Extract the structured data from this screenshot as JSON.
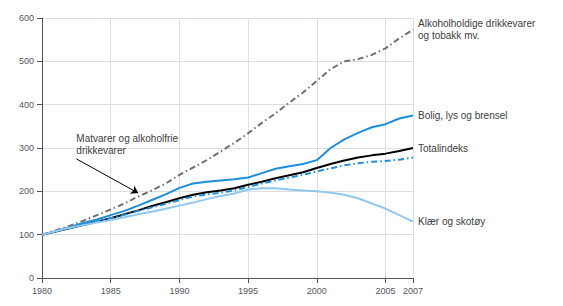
{
  "chart_data": {
    "type": "line",
    "x": [
      1980,
      1981,
      1982,
      1983,
      1984,
      1985,
      1986,
      1987,
      1988,
      1989,
      1990,
      1991,
      1992,
      1993,
      1994,
      1995,
      1996,
      1997,
      1998,
      1999,
      2000,
      2001,
      2002,
      2003,
      2004,
      2005,
      2006,
      2007
    ],
    "series": [
      {
        "color": "#707070",
        "line_style": "dashdot",
        "values": [
          100,
          110,
          120,
          132,
          145,
          158,
          172,
          188,
          202,
          218,
          238,
          255,
          272,
          292,
          312,
          334,
          358,
          380,
          405,
          428,
          455,
          482,
          500,
          505,
          515,
          530,
          553,
          573
        ]
      },
      {
        "color": "#1a8fde",
        "line_style": "solid",
        "values": [
          100,
          108,
          117,
          127,
          135,
          145,
          155,
          167,
          180,
          193,
          208,
          218,
          222,
          225,
          228,
          232,
          242,
          252,
          258,
          263,
          272,
          300,
          320,
          335,
          348,
          355,
          368,
          375
        ]
      },
      {
        "color": "#000000",
        "line_style": "solid",
        "values": [
          100,
          107,
          115,
          122,
          130,
          138,
          147,
          156,
          166,
          175,
          184,
          192,
          198,
          202,
          207,
          215,
          222,
          230,
          237,
          244,
          254,
          263,
          271,
          278,
          283,
          287,
          293,
          300
        ]
      },
      {
        "color": "#1a8fde",
        "line_style": "dashdot",
        "values": [
          100,
          108,
          115,
          123,
          130,
          138,
          146,
          155,
          163,
          171,
          180,
          188,
          193,
          197,
          202,
          210,
          218,
          225,
          232,
          238,
          246,
          253,
          260,
          265,
          268,
          270,
          273,
          278
        ]
      },
      {
        "color": "#90c8f0",
        "line_style": "solid",
        "values": [
          100,
          108,
          116,
          122,
          128,
          134,
          140,
          147,
          153,
          160,
          167,
          174,
          182,
          189,
          195,
          204,
          207,
          207,
          204,
          202,
          200,
          197,
          192,
          184,
          172,
          160,
          145,
          130
        ]
      }
    ],
    "xlim": [
      1980,
      2007
    ],
    "xticks": [
      1980,
      1985,
      1990,
      1995,
      2000,
      2005,
      2007
    ],
    "ylim": [
      0,
      600
    ],
    "yticks": [
      0,
      100,
      200,
      300,
      400,
      500,
      600
    ],
    "grid": true,
    "annotations": [
      {
        "text": "Alkoholholdige drikkevarer\nog tobakk mv.",
        "x": 2007,
        "y": 573
      },
      {
        "text": "Bolig, lys og brensel",
        "x": 2007,
        "y": 375
      },
      {
        "text": "Totalindeks",
        "x": 2007,
        "y": 300
      },
      {
        "text": "Klær og skotøy",
        "x": 2007,
        "y": 130
      },
      {
        "text": "Matvarer og alkoholfrie\ndrikkevarer",
        "x": 1982.5,
        "y": 275,
        "arrow_x": 1987.0,
        "arrow_y": 196
      }
    ]
  }
}
